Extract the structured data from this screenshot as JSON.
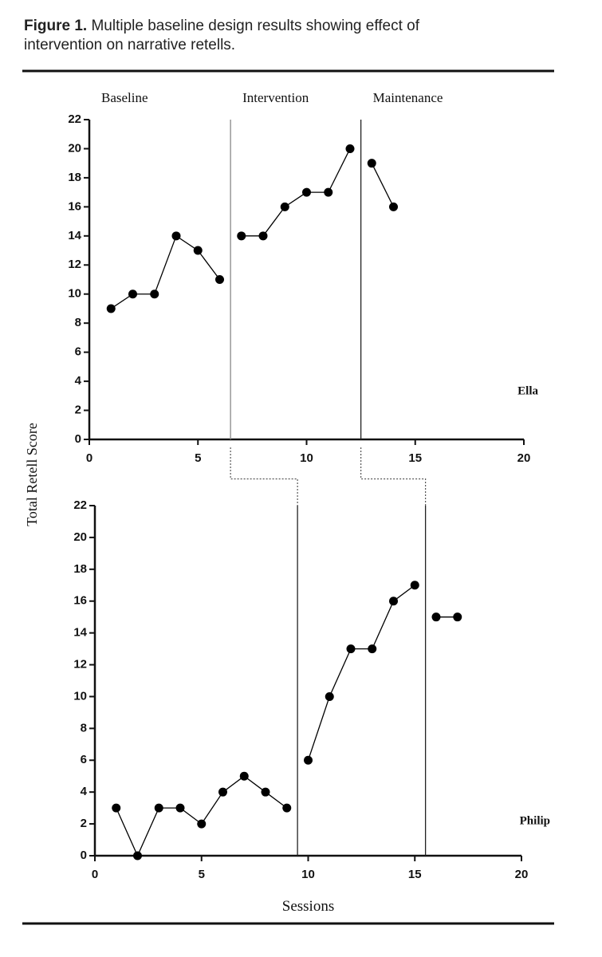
{
  "figure": {
    "label": "Figure 1.",
    "caption": "Multiple baseline design results showing effect of intervention on narrative retells."
  },
  "chart_data": [
    {
      "type": "line",
      "participant": "Ella",
      "phases": [
        "Baseline",
        "Intervention",
        "Maintenance"
      ],
      "phase_lines": [
        6.5,
        12.5
      ],
      "ylabel": "Total Retell Score",
      "xlim": [
        0,
        20
      ],
      "xticks": [
        0,
        5,
        10,
        15,
        20
      ],
      "ylim": [
        0,
        22
      ],
      "yticks": [
        0,
        2,
        4,
        6,
        8,
        10,
        12,
        14,
        16,
        18,
        20,
        22
      ],
      "series": [
        {
          "color": "#000000",
          "x": [
            1,
            2,
            3,
            4,
            5,
            6
          ],
          "values": [
            9,
            10,
            10,
            14,
            13,
            11
          ]
        },
        {
          "color": "#000000",
          "x": [
            7,
            8,
            9,
            10,
            11,
            12
          ],
          "values": [
            14,
            14,
            16,
            17,
            17,
            20
          ]
        },
        {
          "color": "#000000",
          "x": [
            13,
            14
          ],
          "values": [
            19,
            16
          ]
        }
      ]
    },
    {
      "type": "line",
      "participant": "Philip",
      "phase_lines": [
        9.5,
        15.5
      ],
      "xlabel": "Sessions",
      "xlim": [
        0,
        20
      ],
      "xticks": [
        0,
        5,
        10,
        15,
        20
      ],
      "ylim": [
        0,
        22
      ],
      "yticks": [
        0,
        2,
        4,
        6,
        8,
        10,
        12,
        14,
        16,
        18,
        20,
        22
      ],
      "series": [
        {
          "color": "#000000",
          "x": [
            1,
            2,
            3,
            4,
            5,
            6,
            7,
            8,
            9
          ],
          "values": [
            3,
            0,
            3,
            3,
            2,
            4,
            5,
            4,
            3
          ]
        },
        {
          "color": "#000000",
          "x": [
            10,
            11,
            12,
            13,
            14,
            15
          ],
          "values": [
            6,
            10,
            13,
            13,
            16,
            17
          ]
        },
        {
          "color": "#000000",
          "x": [
            16,
            17
          ],
          "values": [
            15,
            15
          ]
        }
      ]
    }
  ]
}
